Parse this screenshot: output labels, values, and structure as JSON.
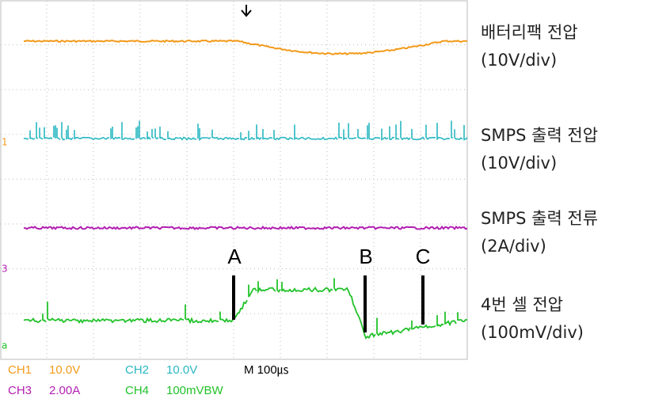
{
  "waveform_labels": [
    {
      "name": "배터리팩 전압",
      "scale": "(10V/div)"
    },
    {
      "name": "SMPS 출력 전압",
      "scale": "(10V/div)"
    },
    {
      "name": "SMPS 출력 전류",
      "scale": "(2A/div)"
    },
    {
      "name": "4번 셀 전압",
      "scale": "(100mV/div)"
    }
  ],
  "markers": [
    "A",
    "B",
    "C"
  ],
  "channel_markers": [
    "1",
    "3",
    "a"
  ],
  "status": {
    "row1": [
      "CH1",
      "10.0V",
      "CH2",
      "10.0V",
      "M 100㎲"
    ],
    "row2": [
      "CH3",
      "2.00A",
      "CH4",
      "100mVBW"
    ]
  }
}
